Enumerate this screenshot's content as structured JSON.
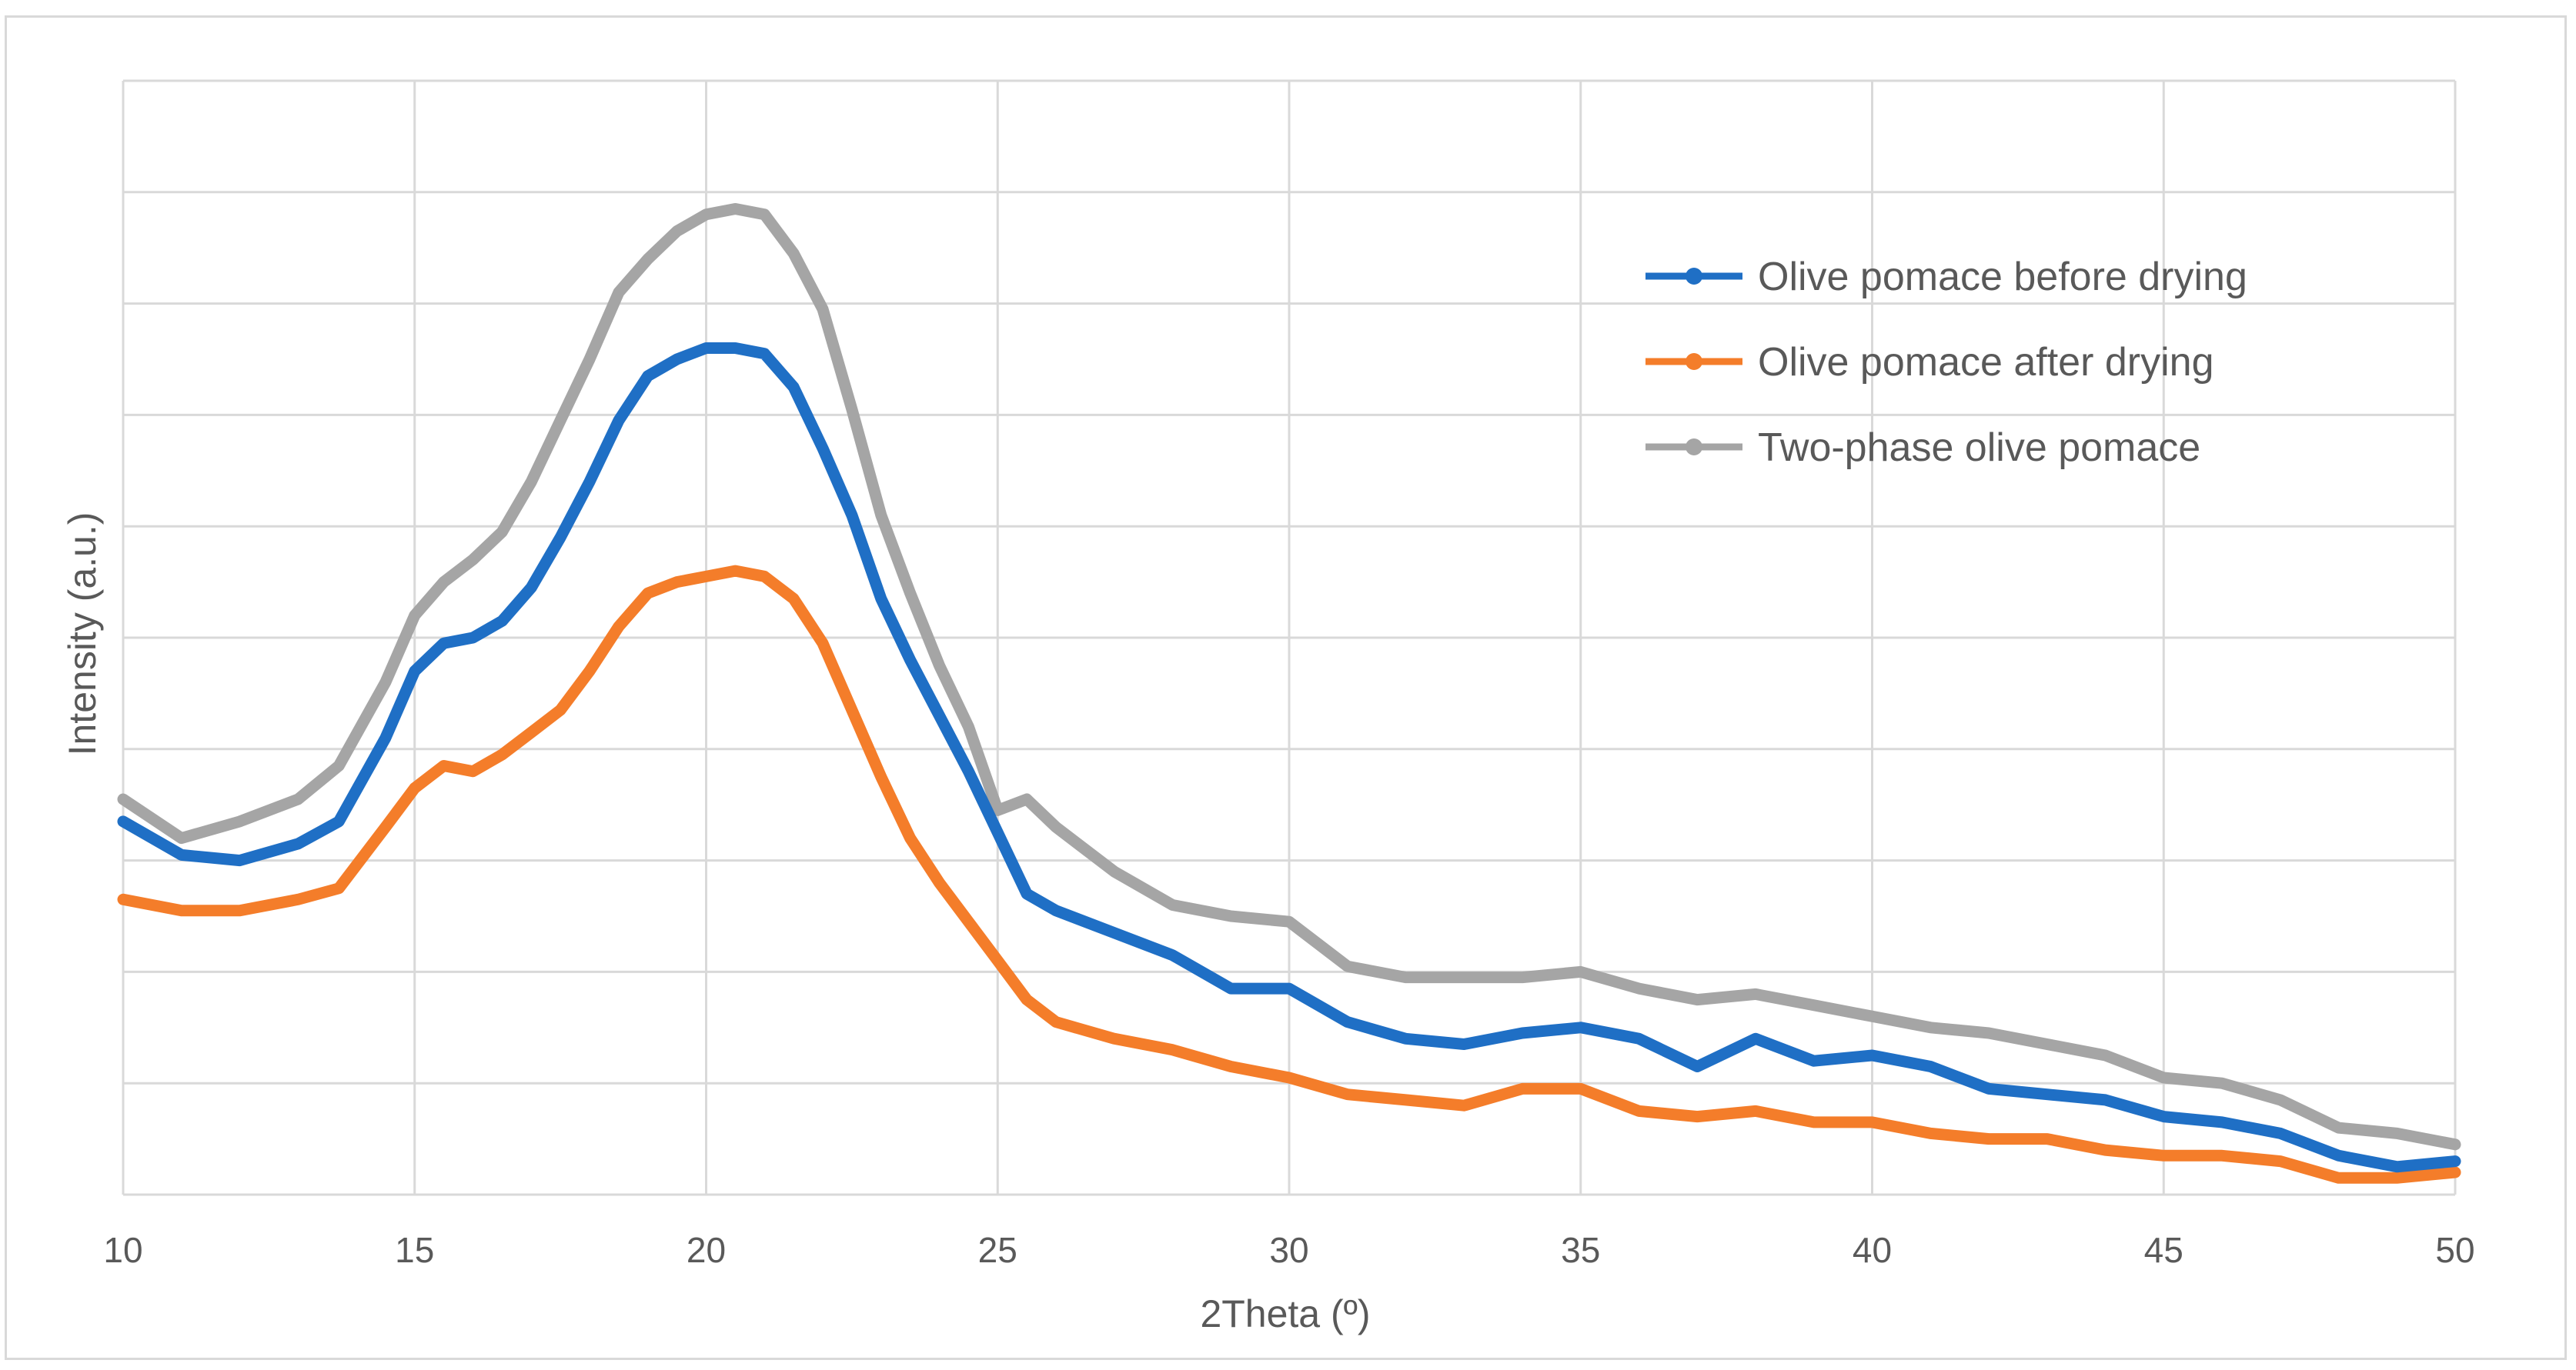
{
  "chart_data": {
    "type": "line",
    "xlabel": "2Theta (º)",
    "ylabel": "Intensity (a.u.)",
    "xlim": [
      10,
      50
    ],
    "ylim": [
      0,
      10
    ],
    "xticks": [
      "10",
      "15",
      "20",
      "25",
      "30",
      "35",
      "40",
      "45",
      "50"
    ],
    "grid": true,
    "legend_position": "top-right",
    "series": [
      {
        "name": "Olive pomace before drying",
        "color": "#1f6fc5",
        "x": [
          10,
          11,
          12,
          13,
          13.7,
          14.5,
          15,
          15.5,
          16,
          16.5,
          17,
          17.5,
          18,
          18.5,
          19,
          19.5,
          20,
          20.5,
          21,
          21.5,
          22,
          22.5,
          23,
          23.5,
          24,
          24.5,
          25,
          25.5,
          26,
          27,
          28,
          29,
          30,
          31,
          32,
          33,
          34,
          35,
          36,
          37,
          38,
          39,
          40,
          41,
          42,
          43,
          44,
          45,
          46,
          47,
          48,
          49,
          50
        ],
        "y": [
          3.35,
          3.05,
          3.0,
          3.15,
          3.35,
          4.1,
          4.7,
          4.95,
          5.0,
          5.15,
          5.45,
          5.9,
          6.4,
          6.95,
          7.35,
          7.5,
          7.6,
          7.6,
          7.55,
          7.25,
          6.7,
          6.1,
          5.35,
          4.8,
          4.3,
          3.8,
          3.25,
          2.7,
          2.55,
          2.35,
          2.15,
          1.85,
          1.85,
          1.55,
          1.4,
          1.35,
          1.45,
          1.5,
          1.4,
          1.15,
          1.4,
          1.2,
          1.25,
          1.15,
          0.95,
          0.9,
          0.85,
          0.7,
          0.65,
          0.55,
          0.35,
          0.25,
          0.3
        ]
      },
      {
        "name": "Olive pomace after drying",
        "color": "#f47d2a",
        "x": [
          10,
          11,
          12,
          13,
          13.7,
          14.5,
          15,
          15.5,
          16,
          16.5,
          17,
          17.5,
          18,
          18.5,
          19,
          19.5,
          20,
          20.5,
          21,
          21.5,
          22,
          22.5,
          23,
          23.5,
          24,
          24.5,
          25,
          25.5,
          26,
          27,
          28,
          29,
          30,
          31,
          32,
          33,
          34,
          35,
          36,
          37,
          38,
          39,
          40,
          41,
          42,
          43,
          44,
          45,
          46,
          47,
          48,
          49,
          50
        ],
        "y": [
          2.65,
          2.55,
          2.55,
          2.65,
          2.75,
          3.3,
          3.65,
          3.85,
          3.8,
          3.95,
          4.15,
          4.35,
          4.7,
          5.1,
          5.4,
          5.5,
          5.55,
          5.6,
          5.55,
          5.35,
          4.95,
          4.35,
          3.75,
          3.2,
          2.8,
          2.45,
          2.1,
          1.75,
          1.55,
          1.4,
          1.3,
          1.15,
          1.05,
          0.9,
          0.85,
          0.8,
          0.95,
          0.95,
          0.75,
          0.7,
          0.75,
          0.65,
          0.65,
          0.55,
          0.5,
          0.5,
          0.4,
          0.35,
          0.35,
          0.3,
          0.15,
          0.15,
          0.2
        ]
      },
      {
        "name": "Two-phase olive pomace",
        "color": "#a5a5a5",
        "x": [
          10,
          11,
          12,
          13,
          13.7,
          14.5,
          15,
          15.5,
          16,
          16.5,
          17,
          17.5,
          18,
          18.5,
          19,
          19.5,
          20,
          20.5,
          21,
          21.5,
          22,
          22.5,
          23,
          23.5,
          24,
          24.5,
          25,
          25.5,
          26,
          27,
          28,
          29,
          30,
          31,
          32,
          33,
          34,
          35,
          36,
          37,
          38,
          39,
          40,
          41,
          42,
          43,
          44,
          45,
          46,
          47,
          48,
          49,
          50
        ],
        "y": [
          3.55,
          3.2,
          3.35,
          3.55,
          3.85,
          4.6,
          5.2,
          5.5,
          5.7,
          5.95,
          6.4,
          6.95,
          7.5,
          8.1,
          8.4,
          8.65,
          8.8,
          8.85,
          8.8,
          8.45,
          7.95,
          7.05,
          6.1,
          5.4,
          4.75,
          4.2,
          3.45,
          3.55,
          3.3,
          2.9,
          2.6,
          2.5,
          2.45,
          2.05,
          1.95,
          1.95,
          1.95,
          2.0,
          1.85,
          1.75,
          1.8,
          1.7,
          1.6,
          1.5,
          1.45,
          1.35,
          1.25,
          1.05,
          1.0,
          0.85,
          0.6,
          0.55,
          0.45
        ]
      }
    ]
  }
}
